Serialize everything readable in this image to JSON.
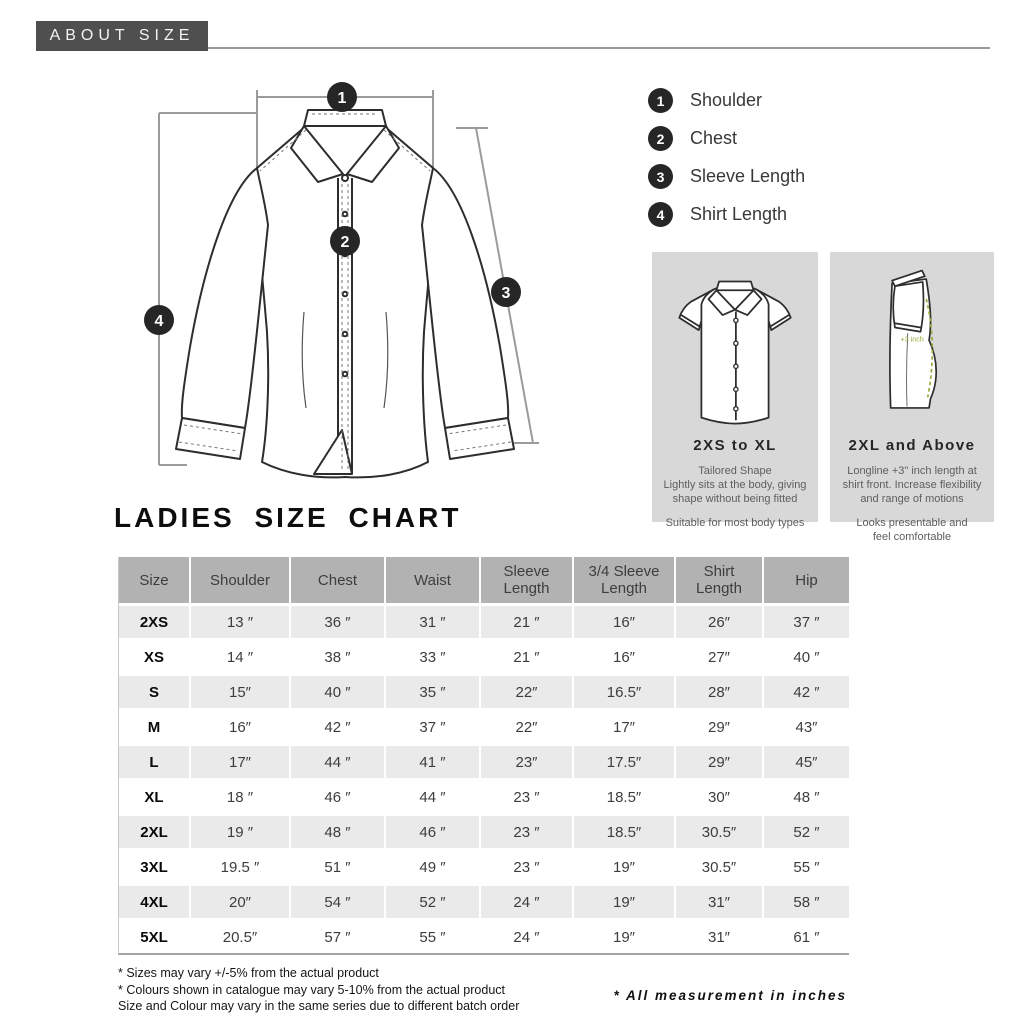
{
  "header": {
    "title": "ABOUT SIZE"
  },
  "legend": {
    "items": [
      {
        "number": "1",
        "label": "Shoulder"
      },
      {
        "number": "2",
        "label": "Chest"
      },
      {
        "number": "3",
        "label": "Sleeve Length"
      },
      {
        "number": "4",
        "label": "Shirt Length"
      }
    ]
  },
  "diagram": {
    "markers": [
      "1",
      "2",
      "3",
      "4"
    ]
  },
  "fit_boxes": [
    {
      "title": "2XS to XL",
      "paragraph1": "Tailored Shape\nLightly sits at the body, giving\nshape without being fitted",
      "paragraph2": "Suitable for most body types"
    },
    {
      "title": "2XL and Above",
      "annotation": "+3 inch",
      "paragraph1": "Longline +3\" inch length at\nshirt front. Increase flexibility\nand range of motions",
      "paragraph2": "Looks presentable and\nfeel comfortable"
    }
  ],
  "size_chart": {
    "title": "LADIES SIZE CHART",
    "columns": [
      "Size",
      "Shoulder",
      "Chest",
      "Waist",
      "Sleeve\nLength",
      "3/4 Sleeve\nLength",
      "Shirt\nLength",
      "Hip"
    ],
    "rows": [
      [
        "2XS",
        "13 ″",
        "36 ″",
        "31 ″",
        "21 ″",
        "16″",
        "26″",
        "37 ″"
      ],
      [
        "XS",
        "14 ″",
        "38 ″",
        "33 ″",
        "21 ″",
        "16″",
        "27″",
        "40 ″"
      ],
      [
        "S",
        "15″",
        "40 ″",
        "35 ″",
        "22″",
        "16.5″",
        "28″",
        "42 ″"
      ],
      [
        "M",
        "16″",
        "42 ″",
        "37 ″",
        "22″",
        "17″",
        "29″",
        "43″"
      ],
      [
        "L",
        "17″",
        "44 ″",
        "41 ″",
        "23″",
        "17.5″",
        "29″",
        "45″"
      ],
      [
        "XL",
        "18 ″",
        "46 ″",
        "44 ″",
        "23 ″",
        "18.5″",
        "30″",
        "48 ″"
      ],
      [
        "2XL",
        "19 ″",
        "48 ″",
        "46 ″",
        "23 ″",
        "18.5″",
        "30.5″",
        "52 ″"
      ],
      [
        "3XL",
        "19.5 ″",
        "51 ″",
        "49 ″",
        "23 ″",
        "19″",
        "30.5″",
        "55 ″"
      ],
      [
        "4XL",
        "20″",
        "54 ″",
        "52 ″",
        "24 ″",
        "19″",
        "31″",
        "58 ″"
      ],
      [
        "5XL",
        "20.5″",
        "57 ″",
        "55 ″",
        "24 ″",
        "19″",
        "31″",
        "61 ″"
      ]
    ]
  },
  "footnotes": {
    "lines": [
      "* Sizes may vary +/-5% from the actual product",
      "* Colours shown in catalogue may vary 5-10% from the actual product",
      "Size and Colour may vary in the same series due to different batch order"
    ],
    "right_note": "* All measurement in inches"
  },
  "colors": {
    "header_box": "#4f4f4f",
    "badge": "#262626",
    "fit_box_bg": "#d8d8d8",
    "table_header_bg": "#b2b2b2",
    "table_stripe": "#eaeaea",
    "green_accent": "#9fa83e"
  }
}
